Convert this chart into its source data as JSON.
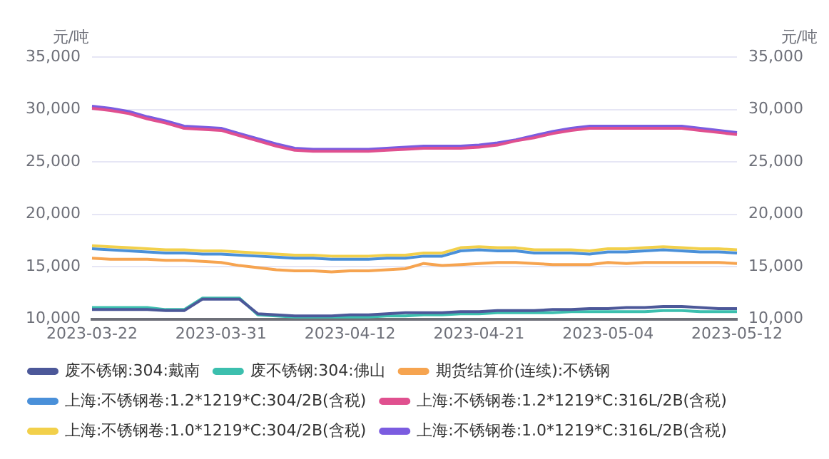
{
  "chart_data": {
    "type": "line",
    "ylabel": "元/吨",
    "y2label": "元/吨",
    "categories": [
      "2023-03-22",
      null,
      null,
      null,
      null,
      null,
      null,
      "2023-03-31",
      null,
      null,
      null,
      null,
      null,
      null,
      "2023-04-12",
      null,
      null,
      null,
      null,
      null,
      null,
      "2023-04-21",
      null,
      null,
      null,
      null,
      null,
      null,
      "2023-05-04",
      null,
      null,
      null,
      null,
      null,
      null,
      "2023-05-12"
    ],
    "ylim": [
      10000,
      35000
    ],
    "yticks": [
      {
        "value": 10000,
        "label": "10,000"
      },
      {
        "value": 15000,
        "label": "15,000"
      },
      {
        "value": 20000,
        "label": "20,000"
      },
      {
        "value": 25000,
        "label": "25,000"
      },
      {
        "value": 30000,
        "label": "30,000"
      },
      {
        "value": 35000,
        "label": "35,000"
      }
    ],
    "y2lim": [
      10000,
      35000
    ],
    "y2ticks": [
      {
        "value": 10000,
        "label": "10,000"
      },
      {
        "value": 15000,
        "label": "15,000"
      },
      {
        "value": 20000,
        "label": "20,000"
      },
      {
        "value": 25000,
        "label": "25,000"
      },
      {
        "value": 30000,
        "label": "30,000"
      },
      {
        "value": 35000,
        "label": "35,000"
      }
    ],
    "grid": "y",
    "legend": "bottom",
    "marker": "none",
    "line_style": "solid",
    "series": [
      {
        "name": "废不锈钢:304:戴南",
        "color": "#4c5899",
        "values": [
          10900,
          10900,
          10900,
          10900,
          10800,
          10800,
          11900,
          11900,
          11900,
          10500,
          10400,
          10300,
          10300,
          10300,
          10400,
          10400,
          10500,
          10600,
          10600,
          10600,
          10700,
          10700,
          10800,
          10800,
          10800,
          10900,
          10900,
          11000,
          11000,
          11100,
          11100,
          11200,
          11200,
          11100,
          11000,
          11000
        ]
      },
      {
        "name": "废不锈钢:304:佛山",
        "color": "#3cbfae",
        "values": [
          11100,
          11100,
          11100,
          11100,
          10900,
          10900,
          12000,
          12000,
          12000,
          10400,
          10300,
          10200,
          10200,
          10200,
          10200,
          10200,
          10300,
          10300,
          10400,
          10400,
          10500,
          10500,
          10600,
          10600,
          10600,
          10600,
          10700,
          10700,
          10700,
          10700,
          10700,
          10800,
          10800,
          10700,
          10700,
          10700
        ]
      },
      {
        "name": "期货结算价(连续):不锈钢",
        "color": "#f6a450",
        "values": [
          15800,
          15700,
          15700,
          15700,
          15600,
          15600,
          15500,
          15400,
          15100,
          14900,
          14700,
          14600,
          14600,
          14500,
          14600,
          14600,
          14700,
          14800,
          15300,
          15100,
          15200,
          15300,
          15400,
          15400,
          15300,
          15200,
          15200,
          15200,
          15400,
          15300,
          15400,
          15400,
          15400,
          15400,
          15400,
          15300
        ]
      },
      {
        "name": "上海:不锈钢卷:1.2*1219*C:304/2B(含税)",
        "color": "#4a90d9",
        "values": [
          16700,
          16600,
          16500,
          16400,
          16300,
          16300,
          16200,
          16200,
          16100,
          16000,
          15900,
          15800,
          15800,
          15700,
          15700,
          15700,
          15800,
          15800,
          16000,
          16000,
          16500,
          16600,
          16500,
          16500,
          16300,
          16300,
          16300,
          16200,
          16400,
          16400,
          16500,
          16600,
          16500,
          16400,
          16400,
          16300
        ]
      },
      {
        "name": "上海:不锈钢卷:1.2*1219*C:316L/2B(含税)",
        "color": "#e0508f",
        "values": [
          30100,
          29900,
          29600,
          29100,
          28700,
          28200,
          28100,
          28000,
          27500,
          27000,
          26500,
          26100,
          26000,
          26000,
          26000,
          26000,
          26100,
          26200,
          26300,
          26300,
          26300,
          26400,
          26600,
          27000,
          27300,
          27700,
          28000,
          28200,
          28200,
          28200,
          28200,
          28200,
          28200,
          28000,
          27800,
          27600
        ]
      },
      {
        "name": "上海:不锈钢卷:1.0*1219*C:304/2B(含税)",
        "color": "#f2d04b",
        "values": [
          17000,
          16900,
          16800,
          16700,
          16600,
          16600,
          16500,
          16500,
          16400,
          16300,
          16200,
          16100,
          16100,
          16000,
          16000,
          16000,
          16100,
          16100,
          16300,
          16300,
          16800,
          16900,
          16800,
          16800,
          16600,
          16600,
          16600,
          16500,
          16700,
          16700,
          16800,
          16900,
          16800,
          16700,
          16700,
          16600
        ]
      },
      {
        "name": "上海:不锈钢卷:1.0*1219*C:316L/2B(含税)",
        "color": "#7b5ce0",
        "values": [
          30300,
          30100,
          29800,
          29300,
          28900,
          28400,
          28300,
          28200,
          27700,
          27200,
          26700,
          26300,
          26200,
          26200,
          26200,
          26200,
          26300,
          26400,
          26500,
          26500,
          26500,
          26600,
          26800,
          27100,
          27500,
          27900,
          28200,
          28400,
          28400,
          28400,
          28400,
          28400,
          28400,
          28200,
          28000,
          27800
        ]
      }
    ]
  }
}
